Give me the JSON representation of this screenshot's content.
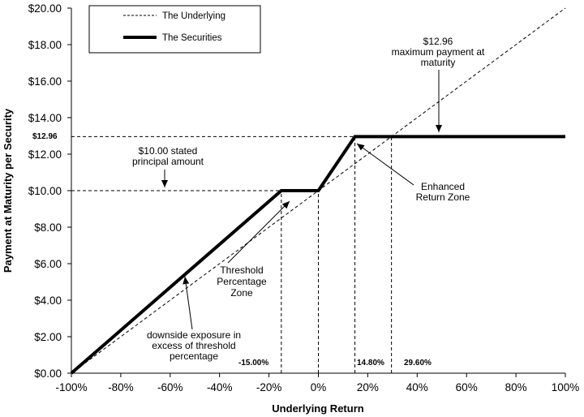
{
  "chart_data": {
    "type": "line",
    "title": "",
    "xlabel": "Underlying Return",
    "ylabel": "Payment at Maturity per Security",
    "xlim": [
      -100,
      100
    ],
    "ylim": [
      0,
      20
    ],
    "x_ticks": [
      -100,
      -80,
      -60,
      -40,
      -20,
      0,
      20,
      40,
      60,
      80,
      100
    ],
    "x_tick_labels": [
      "-100%",
      "-80%",
      "-60%",
      "-40%",
      "-20%",
      "0%",
      "20%",
      "40%",
      "60%",
      "80%",
      "100%"
    ],
    "y_ticks": [
      0,
      2,
      4,
      6,
      8,
      10,
      12,
      14,
      16,
      18,
      20
    ],
    "y_tick_labels": [
      "$0.00",
      "$2.00",
      "$4.00",
      "$6.00",
      "$8.00",
      "$10.00",
      "$12.00",
      "$14.00",
      "$16.00",
      "$18.00",
      "$20.00"
    ],
    "grid": false,
    "legend": {
      "position": "top-left",
      "entries": [
        "The Underlying",
        "The Securities"
      ]
    },
    "series": [
      {
        "name": "The Underlying",
        "style": "dashed",
        "color": "#000000",
        "x": [
          -100,
          100
        ],
        "y": [
          0,
          20
        ]
      },
      {
        "name": "The Securities",
        "style": "solid-thick",
        "color": "#000000",
        "x": [
          -100,
          -15,
          0,
          14.8,
          100
        ],
        "y": [
          0,
          10,
          10,
          12.96,
          12.96
        ]
      }
    ],
    "reference_labels": {
      "y_1296": "$12.96",
      "x_neg15": "-15.00%",
      "x_1480": "14.80%",
      "x_2960": "29.60%"
    },
    "annotations": {
      "max_payment": [
        "$12.96",
        "maximum payment at",
        "maturity"
      ],
      "principal": [
        "$10.00 stated",
        "principal amount"
      ],
      "enhanced": [
        "Enhanced",
        "Return Zone"
      ],
      "threshold": [
        "Threshold",
        "Percentage",
        "Zone"
      ],
      "downside": [
        "downside exposure in",
        "excess of threshold",
        "percentage"
      ]
    }
  }
}
